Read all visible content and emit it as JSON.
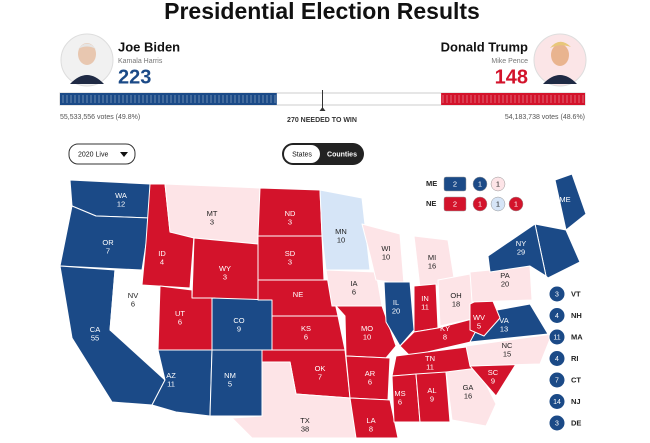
{
  "header": {
    "title": "Presidential Election Results"
  },
  "candidates": [
    {
      "name": "Joe Biden",
      "running_mate": "Kamala Harris",
      "electoral_votes": 223,
      "popular_votes": "55,533,556 votes (49.8%)",
      "color": "#1b4a87"
    },
    {
      "name": "Donald Trump",
      "running_mate": "Mike Pence",
      "electoral_votes": 148,
      "popular_votes": "54,183,738 votes (48.6%)",
      "color": "#d3132b"
    }
  ],
  "needed": {
    "value": 270,
    "label": "270 NEEDED TO WIN"
  },
  "controls": {
    "dropdown": "2020 Live",
    "toggle": [
      "States",
      "Counties"
    ]
  },
  "split_states": [
    {
      "state": "ME",
      "districts": [
        {
          "value": 2,
          "color": "#1b4a87"
        },
        {
          "value": 1,
          "color": "#1b4a87"
        },
        {
          "value": 1,
          "color": "#fde4e7"
        }
      ]
    },
    {
      "state": "NE",
      "districts": [
        {
          "value": 2,
          "color": "#d3132b"
        },
        {
          "value": 1,
          "color": "#d3132b"
        },
        {
          "value": 1,
          "color": "#d6e5f7"
        },
        {
          "value": 1,
          "color": "#d3132b"
        }
      ]
    }
  ],
  "states": [
    {
      "abbr": "WA",
      "votes": 12,
      "color": "#1b4a87"
    },
    {
      "abbr": "OR",
      "votes": 7,
      "color": "#1b4a87"
    },
    {
      "abbr": "CA",
      "votes": 55,
      "color": "#1b4a87"
    },
    {
      "abbr": "NV",
      "votes": 6,
      "color": "#ffffff"
    },
    {
      "abbr": "ID",
      "votes": 4,
      "color": "#d3132b"
    },
    {
      "abbr": "MT",
      "votes": 3,
      "color": "#fde4e7"
    },
    {
      "abbr": "WY",
      "votes": 3,
      "color": "#d3132b"
    },
    {
      "abbr": "UT",
      "votes": 6,
      "color": "#d3132b"
    },
    {
      "abbr": "AZ",
      "votes": 11,
      "color": "#1b4a87"
    },
    {
      "abbr": "CO",
      "votes": 9,
      "color": "#1b4a87"
    },
    {
      "abbr": "NM",
      "votes": 5,
      "color": "#1b4a87"
    },
    {
      "abbr": "ND",
      "votes": 3,
      "color": "#d3132b"
    },
    {
      "abbr": "SD",
      "votes": 3,
      "color": "#d3132b"
    },
    {
      "abbr": "NE",
      "color": "#d3132b"
    },
    {
      "abbr": "KS",
      "votes": 6,
      "color": "#d3132b"
    },
    {
      "abbr": "OK",
      "votes": 7,
      "color": "#d3132b"
    },
    {
      "abbr": "TX",
      "votes": 38,
      "color": "#fde4e7"
    },
    {
      "abbr": "MN",
      "votes": 10,
      "color": "#d6e5f7"
    },
    {
      "abbr": "IA",
      "votes": 6,
      "color": "#fde4e7"
    },
    {
      "abbr": "MO",
      "votes": 10,
      "color": "#d3132b"
    },
    {
      "abbr": "AR",
      "votes": 6,
      "color": "#d3132b"
    },
    {
      "abbr": "LA",
      "votes": 8,
      "color": "#d3132b"
    },
    {
      "abbr": "WI",
      "votes": 10,
      "color": "#fde4e7"
    },
    {
      "abbr": "IL",
      "votes": 20,
      "color": "#1b4a87"
    },
    {
      "abbr": "MI",
      "votes": 16,
      "color": "#fde4e7"
    },
    {
      "abbr": "IN",
      "votes": 11,
      "color": "#d3132b"
    },
    {
      "abbr": "OH",
      "votes": 18,
      "color": "#fde4e7"
    },
    {
      "abbr": "KY",
      "votes": 8,
      "color": "#d3132b"
    },
    {
      "abbr": "TN",
      "votes": 11,
      "color": "#d3132b"
    },
    {
      "abbr": "MS",
      "votes": 6,
      "color": "#d3132b"
    },
    {
      "abbr": "AL",
      "votes": 9,
      "color": "#d3132b"
    },
    {
      "abbr": "GA",
      "votes": 16,
      "color": "#fde4e7"
    },
    {
      "abbr": "SC",
      "votes": 9,
      "color": "#d3132b"
    },
    {
      "abbr": "NC",
      "votes": 15,
      "color": "#fde4e7"
    },
    {
      "abbr": "VA",
      "votes": 13,
      "color": "#1b4a87"
    },
    {
      "abbr": "WV",
      "votes": 5,
      "color": "#d3132b"
    },
    {
      "abbr": "PA",
      "votes": 20,
      "color": "#fde4e7"
    },
    {
      "abbr": "NY",
      "votes": 29,
      "color": "#1b4a87"
    },
    {
      "abbr": "ME",
      "color": "#1b4a87"
    }
  ],
  "small_states": [
    {
      "abbr": "VT",
      "votes": 3,
      "color": "#1b4a87"
    },
    {
      "abbr": "NH",
      "votes": 4,
      "color": "#1b4a87"
    },
    {
      "abbr": "MA",
      "votes": 11,
      "color": "#1b4a87"
    },
    {
      "abbr": "RI",
      "votes": 4,
      "color": "#1b4a87"
    },
    {
      "abbr": "CT",
      "votes": 7,
      "color": "#1b4a87"
    },
    {
      "abbr": "NJ",
      "votes": 14,
      "color": "#1b4a87"
    },
    {
      "abbr": "DE",
      "votes": 3,
      "color": "#1b4a87"
    }
  ]
}
